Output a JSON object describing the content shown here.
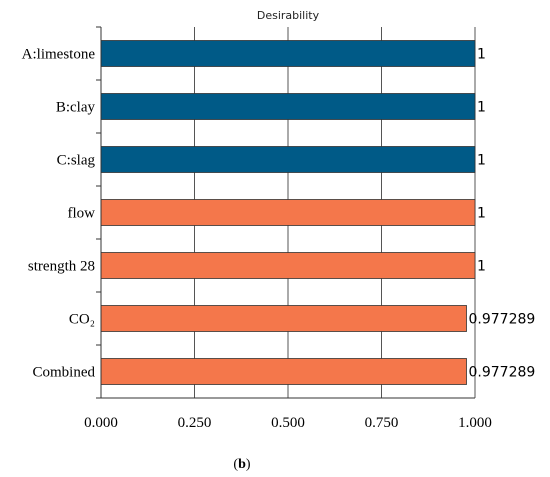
{
  "chart_data": {
    "type": "bar",
    "orientation": "horizontal",
    "title": "Desirability",
    "categories": [
      "A:limestone",
      "B:clay",
      "C:slag",
      "flow",
      "strength 28",
      "CO₂",
      "Combined"
    ],
    "values": [
      1,
      1,
      1,
      1,
      1,
      0.977289,
      0.977289
    ],
    "value_labels": [
      "1",
      "1",
      "1",
      "1",
      "1",
      "0.977289",
      "0.977289"
    ],
    "bar_colors": [
      "#005a87",
      "#005a87",
      "#005a87",
      "#f4774b",
      "#f4774b",
      "#f4774b",
      "#f4774b"
    ],
    "xlim": [
      0,
      1
    ],
    "xticks": [
      "0.000",
      "0.250",
      "0.500",
      "0.750",
      "1.000"
    ],
    "xlabel": "",
    "ylabel": "",
    "grid": true
  },
  "caption": {
    "open": "(",
    "letter": "b",
    "close": ")"
  }
}
